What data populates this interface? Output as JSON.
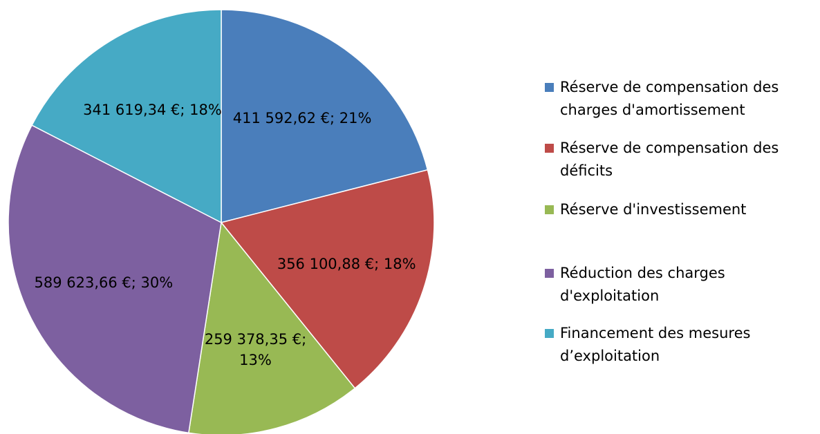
{
  "chart_data": {
    "type": "pie",
    "categories": [
      "Réserve de compensation des charges d'amortissement",
      "Réserve de compensation des déficits",
      "Réserve d'investissement",
      "Réduction des charges d'exploitation",
      "Financement des mesures d’exploitation"
    ],
    "values": [
      411592.62,
      356100.88,
      259378.35,
      589623.66,
      341619.34
    ],
    "value_labels": [
      "411 592,62 €; 21%",
      "356 100,88 €; 18%",
      "259 378,35 €; 13%",
      "589 623,66 €; 30%",
      "341 619,34 €; 18%"
    ],
    "colors": [
      "#4a7ebb",
      "#be4b48",
      "#98b954",
      "#7d60a0",
      "#46aac5"
    ],
    "legend": "right"
  }
}
